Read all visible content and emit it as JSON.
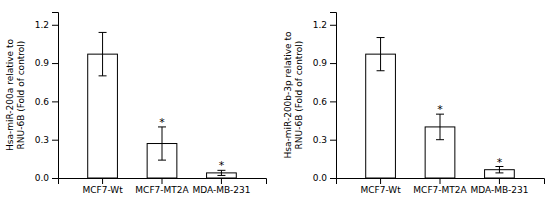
{
  "chart_data": [
    {
      "type": "bar",
      "ylabel": "Hsa-miR-200a relative to\nRNU-6B (Fold of control)",
      "categories": [
        "MCF7-Wt",
        "MCF7-MT2A",
        "MDA-MB-231"
      ],
      "values": [
        0.97,
        0.27,
        0.04
      ],
      "errors": [
        0.17,
        0.13,
        0.02
      ],
      "color": "#ffffff",
      "ylim": [
        0,
        1.3
      ],
      "yticks": [
        {
          "value": 0,
          "label": "0.0"
        },
        0.3,
        0.6,
        0.9,
        1.2
      ],
      "grid": false,
      "annotations": [
        {
          "text": "*",
          "category": "MCF7-MT2A"
        },
        {
          "text": "*",
          "category": "MDA-MB-231"
        }
      ]
    },
    {
      "type": "bar",
      "ylabel": "Hsa-miR-200b-3p relative to\nRNU-6B (Fold of control)",
      "categories": [
        "MCF7-Wt",
        "MCF7-MT2A",
        "MDA-MB-231"
      ],
      "values": [
        0.97,
        0.4,
        0.065
      ],
      "errors": [
        0.13,
        0.1,
        0.025
      ],
      "color": "#ffffff",
      "ylim": [
        0,
        1.3
      ],
      "yticks": [
        {
          "value": 0,
          "label": "0.0"
        },
        0.3,
        0.6,
        0.9,
        1.2
      ],
      "grid": false,
      "annotations": [
        {
          "text": "*",
          "category": "MCF7-MT2A"
        },
        {
          "text": "*",
          "category": "MDA-MB-231"
        }
      ]
    }
  ]
}
